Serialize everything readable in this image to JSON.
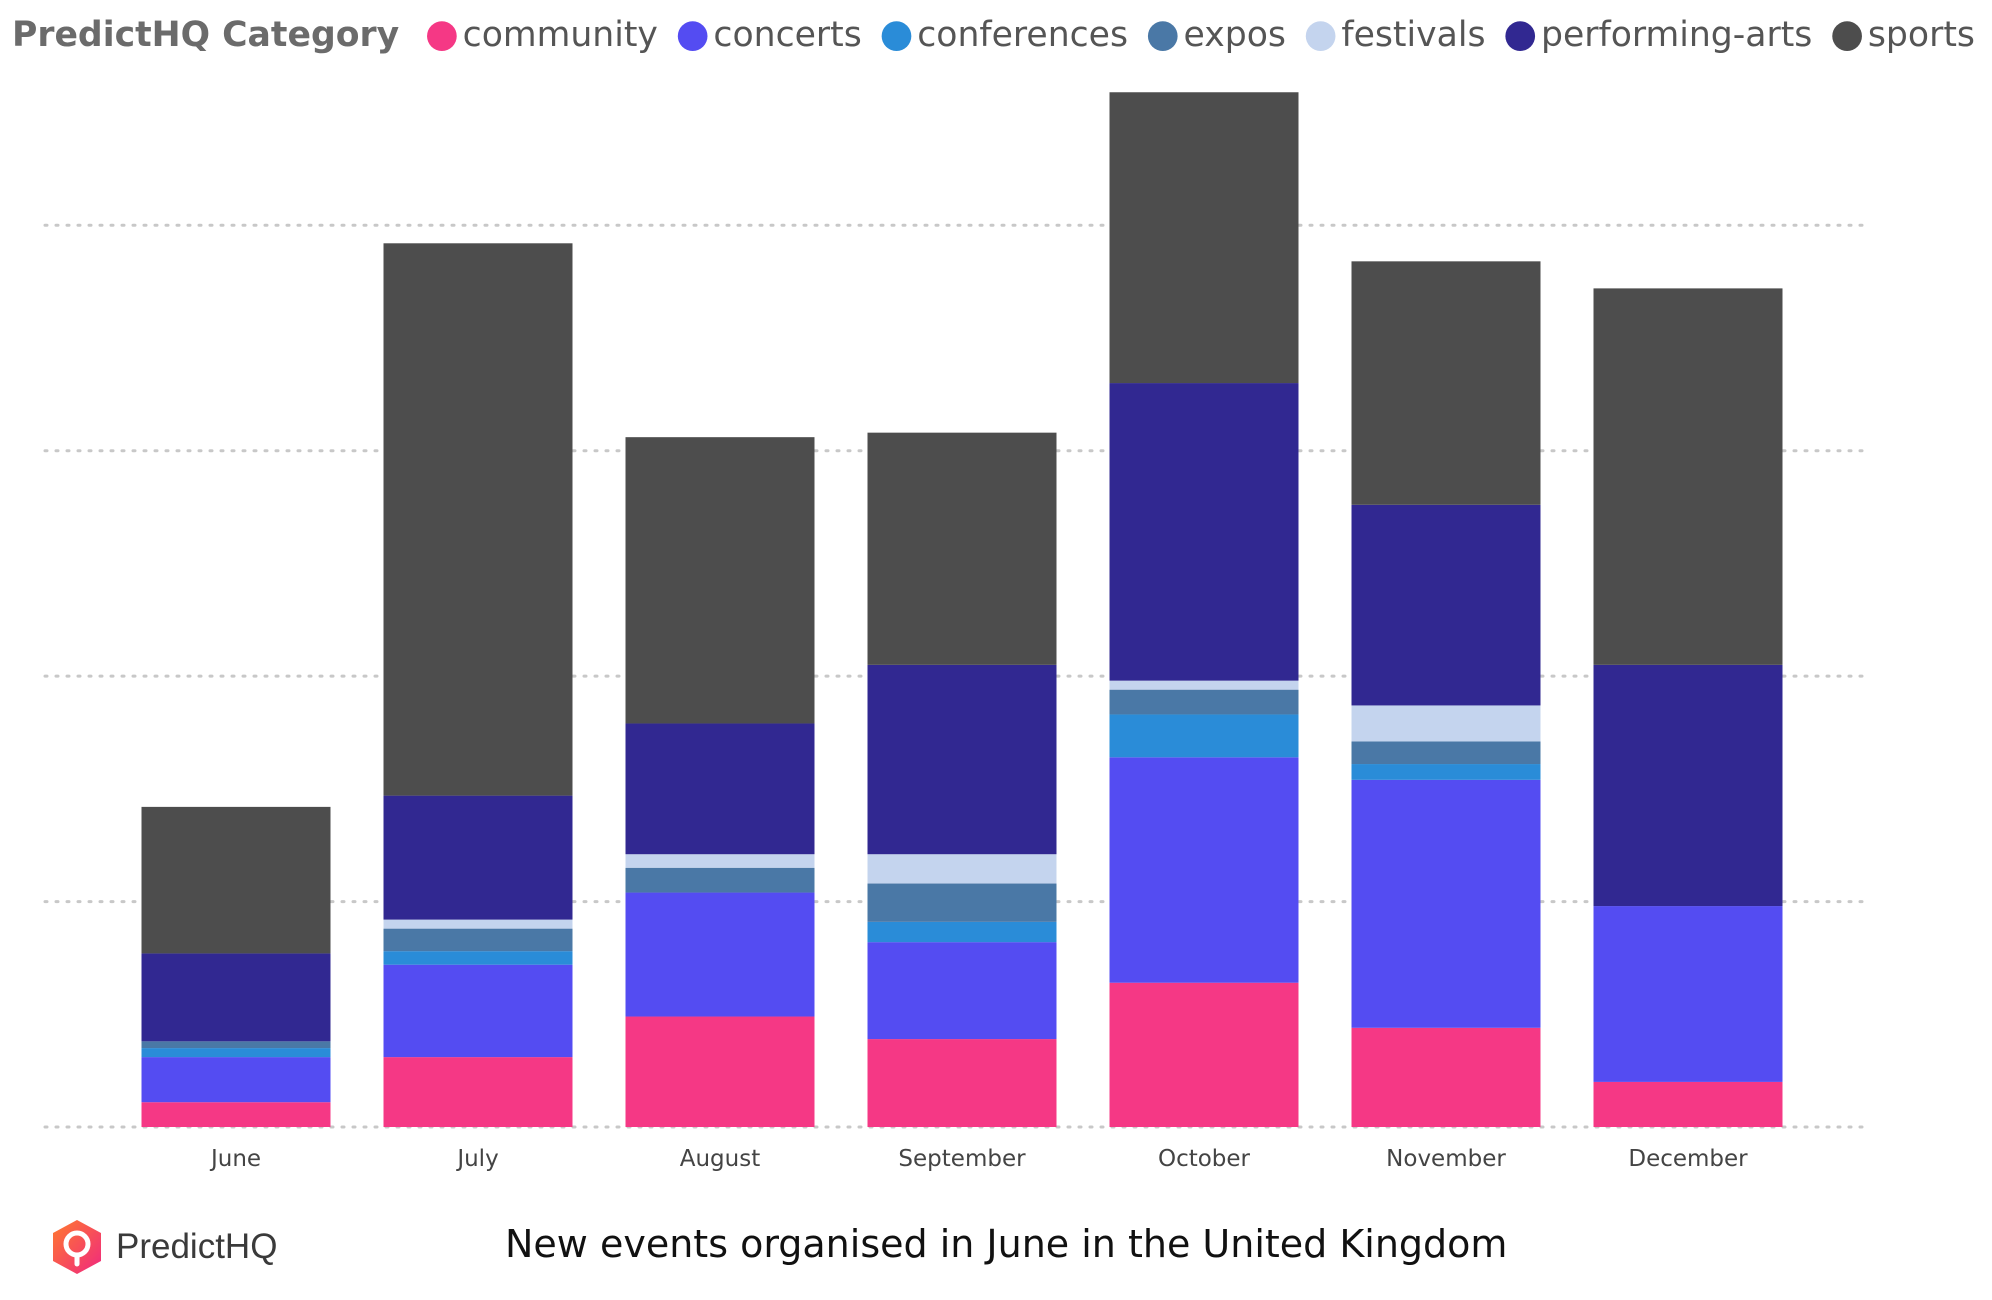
{
  "chart_data": {
    "type": "bar",
    "stacked": true,
    "legend_title": "PredictHQ Category",
    "legend_position": "top-left",
    "grid": true,
    "categories": [
      "June",
      "July",
      "August",
      "September",
      "October",
      "November",
      "December"
    ],
    "ylim": [
      0,
      4.6
    ],
    "gridline_values": [
      0,
      1,
      2,
      3,
      4
    ],
    "series": [
      {
        "name": "community",
        "color": "#f53885",
        "values": [
          0.11,
          0.31,
          0.49,
          0.39,
          0.64,
          0.44,
          0.2
        ]
      },
      {
        "name": "concerts",
        "color": "#544cf2",
        "values": [
          0.2,
          0.41,
          0.55,
          0.43,
          1.0,
          1.1,
          0.78
        ]
      },
      {
        "name": "conferences",
        "color": "#2a8cd8",
        "values": [
          0.04,
          0.06,
          0.0,
          0.09,
          0.19,
          0.07,
          0.0
        ]
      },
      {
        "name": "expos",
        "color": "#4a78a6",
        "values": [
          0.03,
          0.1,
          0.11,
          0.17,
          0.11,
          0.1,
          0.0
        ]
      },
      {
        "name": "festivals",
        "color": "#c4d4ee",
        "values": [
          0.0,
          0.04,
          0.06,
          0.13,
          0.04,
          0.16,
          0.0
        ]
      },
      {
        "name": "performing-arts",
        "color": "#312891",
        "values": [
          0.39,
          0.55,
          0.58,
          0.84,
          1.32,
          0.89,
          1.07
        ]
      },
      {
        "name": "sports",
        "color": "#4d4d4d",
        "values": [
          0.65,
          2.45,
          1.27,
          1.03,
          1.29,
          1.08,
          1.67
        ]
      }
    ]
  },
  "footer": {
    "brand_name": "PredictHQ",
    "caption": "New events organised in June in the United Kingdom"
  }
}
